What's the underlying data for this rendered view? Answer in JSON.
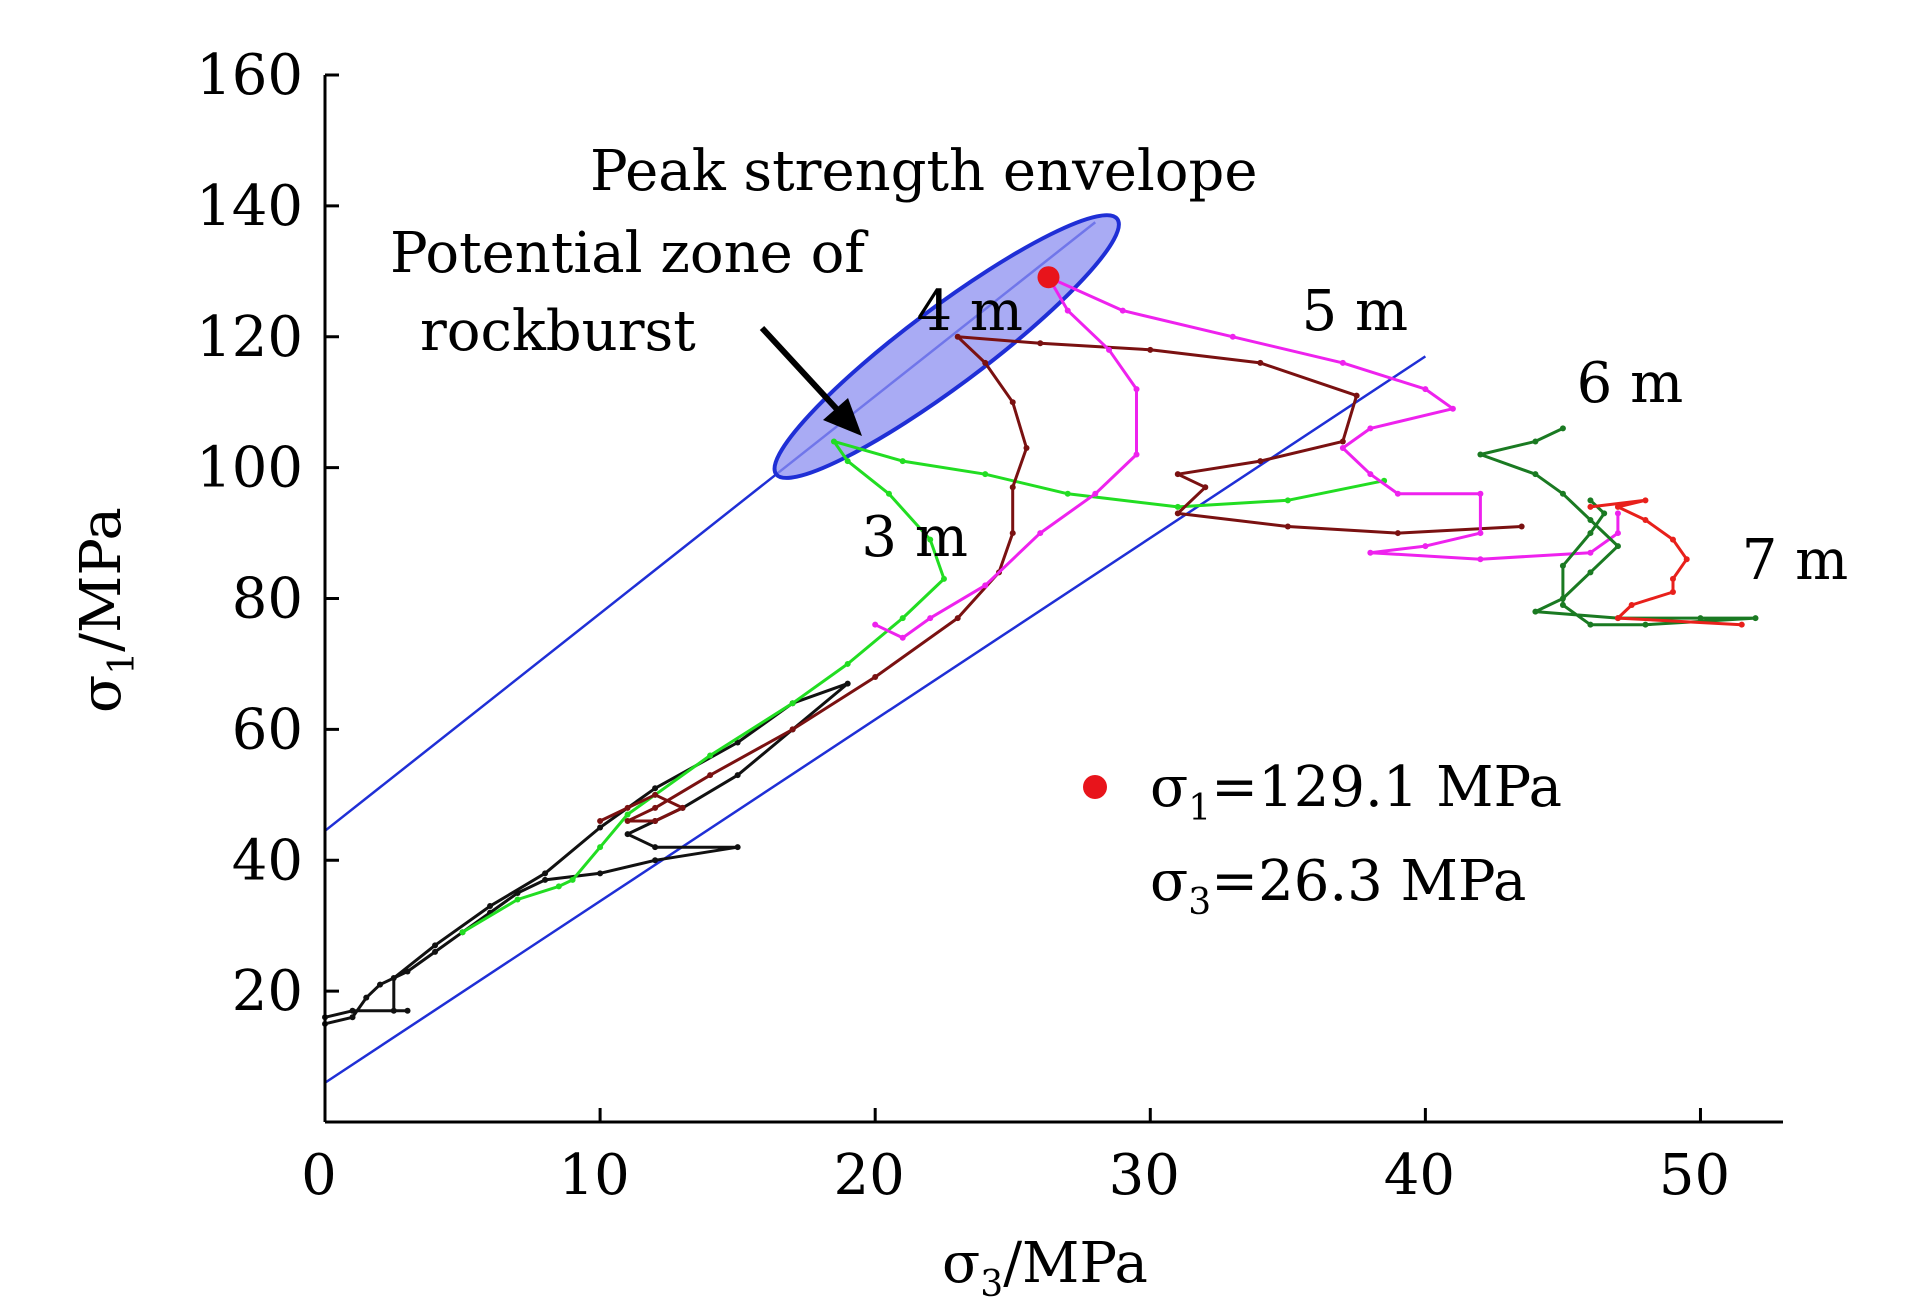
{
  "chart_data": {
    "type": "line",
    "xlabel": "σ3/MPa",
    "ylabel": "σ1/MPa",
    "xlim": [
      0,
      53
    ],
    "ylim": [
      0,
      160
    ],
    "xticks": [
      0,
      10,
      20,
      30,
      40,
      50
    ],
    "yticks": [
      20,
      40,
      60,
      80,
      100,
      120,
      140,
      160
    ],
    "grid": false,
    "envelope_lines": [
      {
        "color": "#1f2fd6",
        "points": [
          [
            0,
            44.5
          ],
          [
            28,
            137.5
          ]
        ]
      },
      {
        "color": "#1f2fd6",
        "points": [
          [
            0,
            6
          ],
          [
            40,
            117
          ]
        ]
      }
    ],
    "zone": {
      "center": [
        22.6,
        118.5
      ],
      "semi_major_len_data": [
        6.2,
        19.5
      ],
      "color": "#8c8ff0",
      "edge": "#1f2fd6"
    },
    "annotations": [
      {
        "id": "envelope",
        "text": "Peak strength envelope"
      },
      {
        "id": "zone1",
        "text": "Potential zone of"
      },
      {
        "id": "zone2",
        "text": "rockburst"
      }
    ],
    "peak_point": {
      "x": 26.3,
      "y": 129.1,
      "color": "#e8141b"
    },
    "legend": {
      "marker_color": "#e8141b",
      "line1_sym": "σ",
      "line1_sub": "1",
      "line1_val": "=129.1 MPa",
      "line2_sym": "σ",
      "line2_sub": "3",
      "line2_val": "=26.3 MPa"
    },
    "series": [
      {
        "name": "black",
        "color": "#111111",
        "points": [
          [
            0,
            15
          ],
          [
            1,
            16
          ],
          [
            1.5,
            19
          ],
          [
            2,
            21
          ],
          [
            3,
            23
          ],
          [
            4,
            26
          ],
          [
            5,
            29
          ],
          [
            6,
            32
          ],
          [
            7,
            35
          ],
          [
            8,
            37
          ],
          [
            10,
            38
          ],
          [
            12,
            40
          ],
          [
            15,
            42
          ],
          [
            12,
            42
          ],
          [
            11,
            44
          ],
          [
            12,
            46
          ],
          [
            13,
            48
          ],
          [
            15,
            53
          ],
          [
            17,
            60
          ],
          [
            19,
            67
          ],
          [
            17,
            64
          ],
          [
            15,
            58
          ],
          [
            12,
            51
          ],
          [
            10,
            45
          ],
          [
            8,
            38
          ],
          [
            6,
            33
          ],
          [
            4,
            27
          ],
          [
            2.5,
            22
          ],
          [
            2.5,
            17
          ],
          [
            3,
            17
          ],
          [
            1,
            17
          ],
          [
            0,
            16
          ]
        ]
      },
      {
        "name": "3 m",
        "color": "#22dd22",
        "points": [
          [
            5,
            29
          ],
          [
            7,
            34
          ],
          [
            8.5,
            36
          ],
          [
            9,
            37
          ],
          [
            10,
            42
          ],
          [
            11,
            47
          ],
          [
            12,
            50
          ],
          [
            14,
            56
          ],
          [
            17,
            64
          ],
          [
            19,
            70
          ],
          [
            21,
            77
          ],
          [
            22.5,
            83
          ],
          [
            22,
            89
          ],
          [
            20.5,
            96
          ],
          [
            19,
            101
          ],
          [
            18.5,
            104
          ],
          [
            21,
            101
          ],
          [
            24,
            99
          ],
          [
            27,
            96
          ],
          [
            31,
            94
          ],
          [
            35,
            95
          ],
          [
            38.5,
            98
          ]
        ]
      },
      {
        "name": "4 m",
        "color": "#7a1111",
        "points": [
          [
            10,
            46
          ],
          [
            11,
            48
          ],
          [
            12,
            50
          ],
          [
            13,
            48
          ],
          [
            12,
            46
          ],
          [
            11,
            46
          ],
          [
            12,
            48
          ],
          [
            14,
            53
          ],
          [
            17,
            60
          ],
          [
            20,
            68
          ],
          [
            23,
            77
          ],
          [
            24.5,
            84
          ],
          [
            25,
            90
          ],
          [
            25,
            97
          ],
          [
            25.5,
            103
          ],
          [
            25,
            110
          ],
          [
            24,
            116
          ],
          [
            23,
            120
          ],
          [
            26,
            119
          ],
          [
            30,
            118
          ],
          [
            34,
            116
          ],
          [
            37.5,
            111
          ],
          [
            37,
            104
          ],
          [
            34,
            101
          ],
          [
            31,
            99
          ],
          [
            32,
            97
          ],
          [
            31,
            93
          ],
          [
            35,
            91
          ],
          [
            39,
            90
          ],
          [
            43.5,
            91
          ]
        ]
      },
      {
        "name": "5 m",
        "color": "#ee22ee",
        "points": [
          [
            20,
            76
          ],
          [
            21,
            74
          ],
          [
            22,
            77
          ],
          [
            24,
            82
          ],
          [
            26,
            90
          ],
          [
            28,
            96
          ],
          [
            29.5,
            102
          ],
          [
            29.5,
            112
          ],
          [
            28.5,
            118
          ],
          [
            27,
            124
          ],
          [
            26.3,
            129.1
          ],
          [
            29,
            124
          ],
          [
            33,
            120
          ],
          [
            37,
            116
          ],
          [
            40,
            112
          ],
          [
            41,
            109
          ],
          [
            38,
            106
          ],
          [
            37,
            103
          ],
          [
            38,
            99
          ],
          [
            39,
            96
          ],
          [
            42,
            96
          ],
          [
            42,
            90
          ],
          [
            40,
            88
          ],
          [
            38,
            87
          ],
          [
            42,
            86
          ],
          [
            46,
            87
          ],
          [
            47,
            90
          ],
          [
            47,
            93
          ]
        ]
      },
      {
        "name": "6 m",
        "color": "#1a7a22",
        "points": [
          [
            45,
            106
          ],
          [
            44,
            104
          ],
          [
            42,
            102
          ],
          [
            44,
            99
          ],
          [
            45,
            96
          ],
          [
            46,
            92
          ],
          [
            47,
            88
          ],
          [
            46,
            84
          ],
          [
            45,
            80
          ],
          [
            44,
            78
          ],
          [
            47,
            77
          ],
          [
            50,
            77
          ],
          [
            52,
            77
          ],
          [
            48,
            76
          ],
          [
            46,
            76
          ],
          [
            45,
            79
          ],
          [
            45,
            85
          ],
          [
            46,
            90
          ],
          [
            46.5,
            93
          ],
          [
            46,
            95
          ]
        ]
      },
      {
        "name": "7 m",
        "color": "#e8201b",
        "points": [
          [
            46,
            94
          ],
          [
            48,
            95
          ],
          [
            47,
            94
          ],
          [
            48,
            92
          ],
          [
            49,
            89
          ],
          [
            49.5,
            86
          ],
          [
            49,
            83
          ],
          [
            49,
            81
          ],
          [
            47.5,
            79
          ],
          [
            47,
            77
          ],
          [
            51.5,
            76
          ]
        ]
      }
    ],
    "series_labels": [
      {
        "text": "3 m",
        "x": 19.5,
        "y": 86.5
      },
      {
        "text": "4 m",
        "x": 21.5,
        "y": 121
      },
      {
        "text": "5 m",
        "x": 35.5,
        "y": 121
      },
      {
        "text": "6 m",
        "x": 45.5,
        "y": 110
      },
      {
        "text": "7 m",
        "x": 51.5,
        "y": 83
      }
    ]
  }
}
